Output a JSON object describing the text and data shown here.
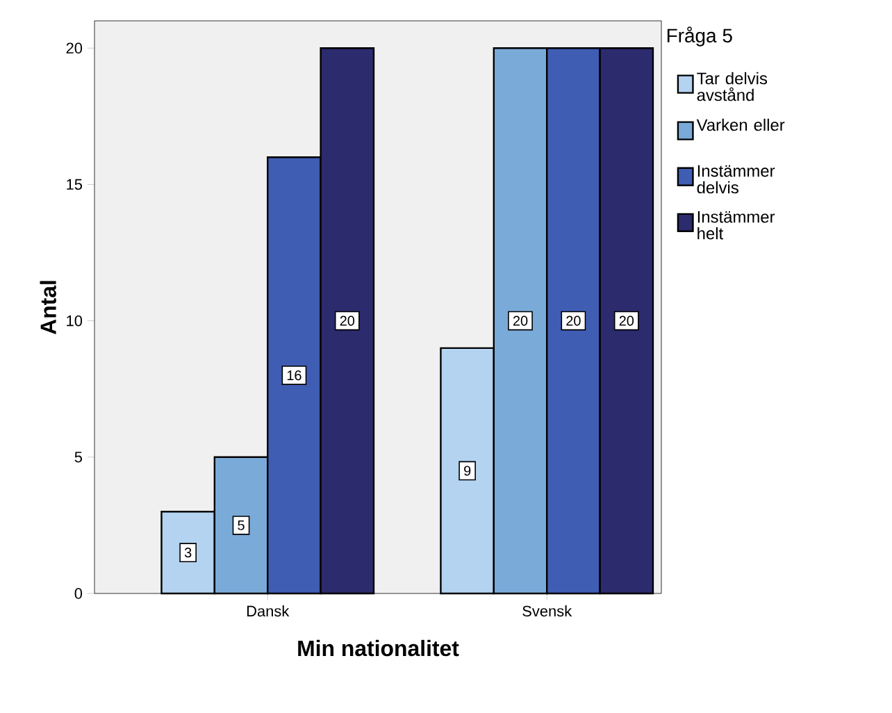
{
  "chart_data": {
    "type": "bar",
    "xlabel": "Min nationalitet",
    "ylabel": "Antal",
    "legend_title": "Fråga 5",
    "categories": [
      "Dansk",
      "Svensk"
    ],
    "series": [
      {
        "name": "Tar delvis avstånd",
        "color": "#b3d3f0",
        "values": [
          3,
          9
        ]
      },
      {
        "name": "Varken eller",
        "color": "#7aaad8",
        "values": [
          5,
          20
        ]
      },
      {
        "name": "Instämmer delvis",
        "color": "#3f5db3",
        "values": [
          16,
          20
        ]
      },
      {
        "name": "Instämmer helt",
        "color": "#2b2b6e",
        "values": [
          20,
          20
        ]
      }
    ],
    "ylim": [
      0,
      21
    ],
    "yticks": [
      0,
      5,
      10,
      15,
      20
    ],
    "data_labels": true,
    "legend": "right",
    "grid": false
  }
}
